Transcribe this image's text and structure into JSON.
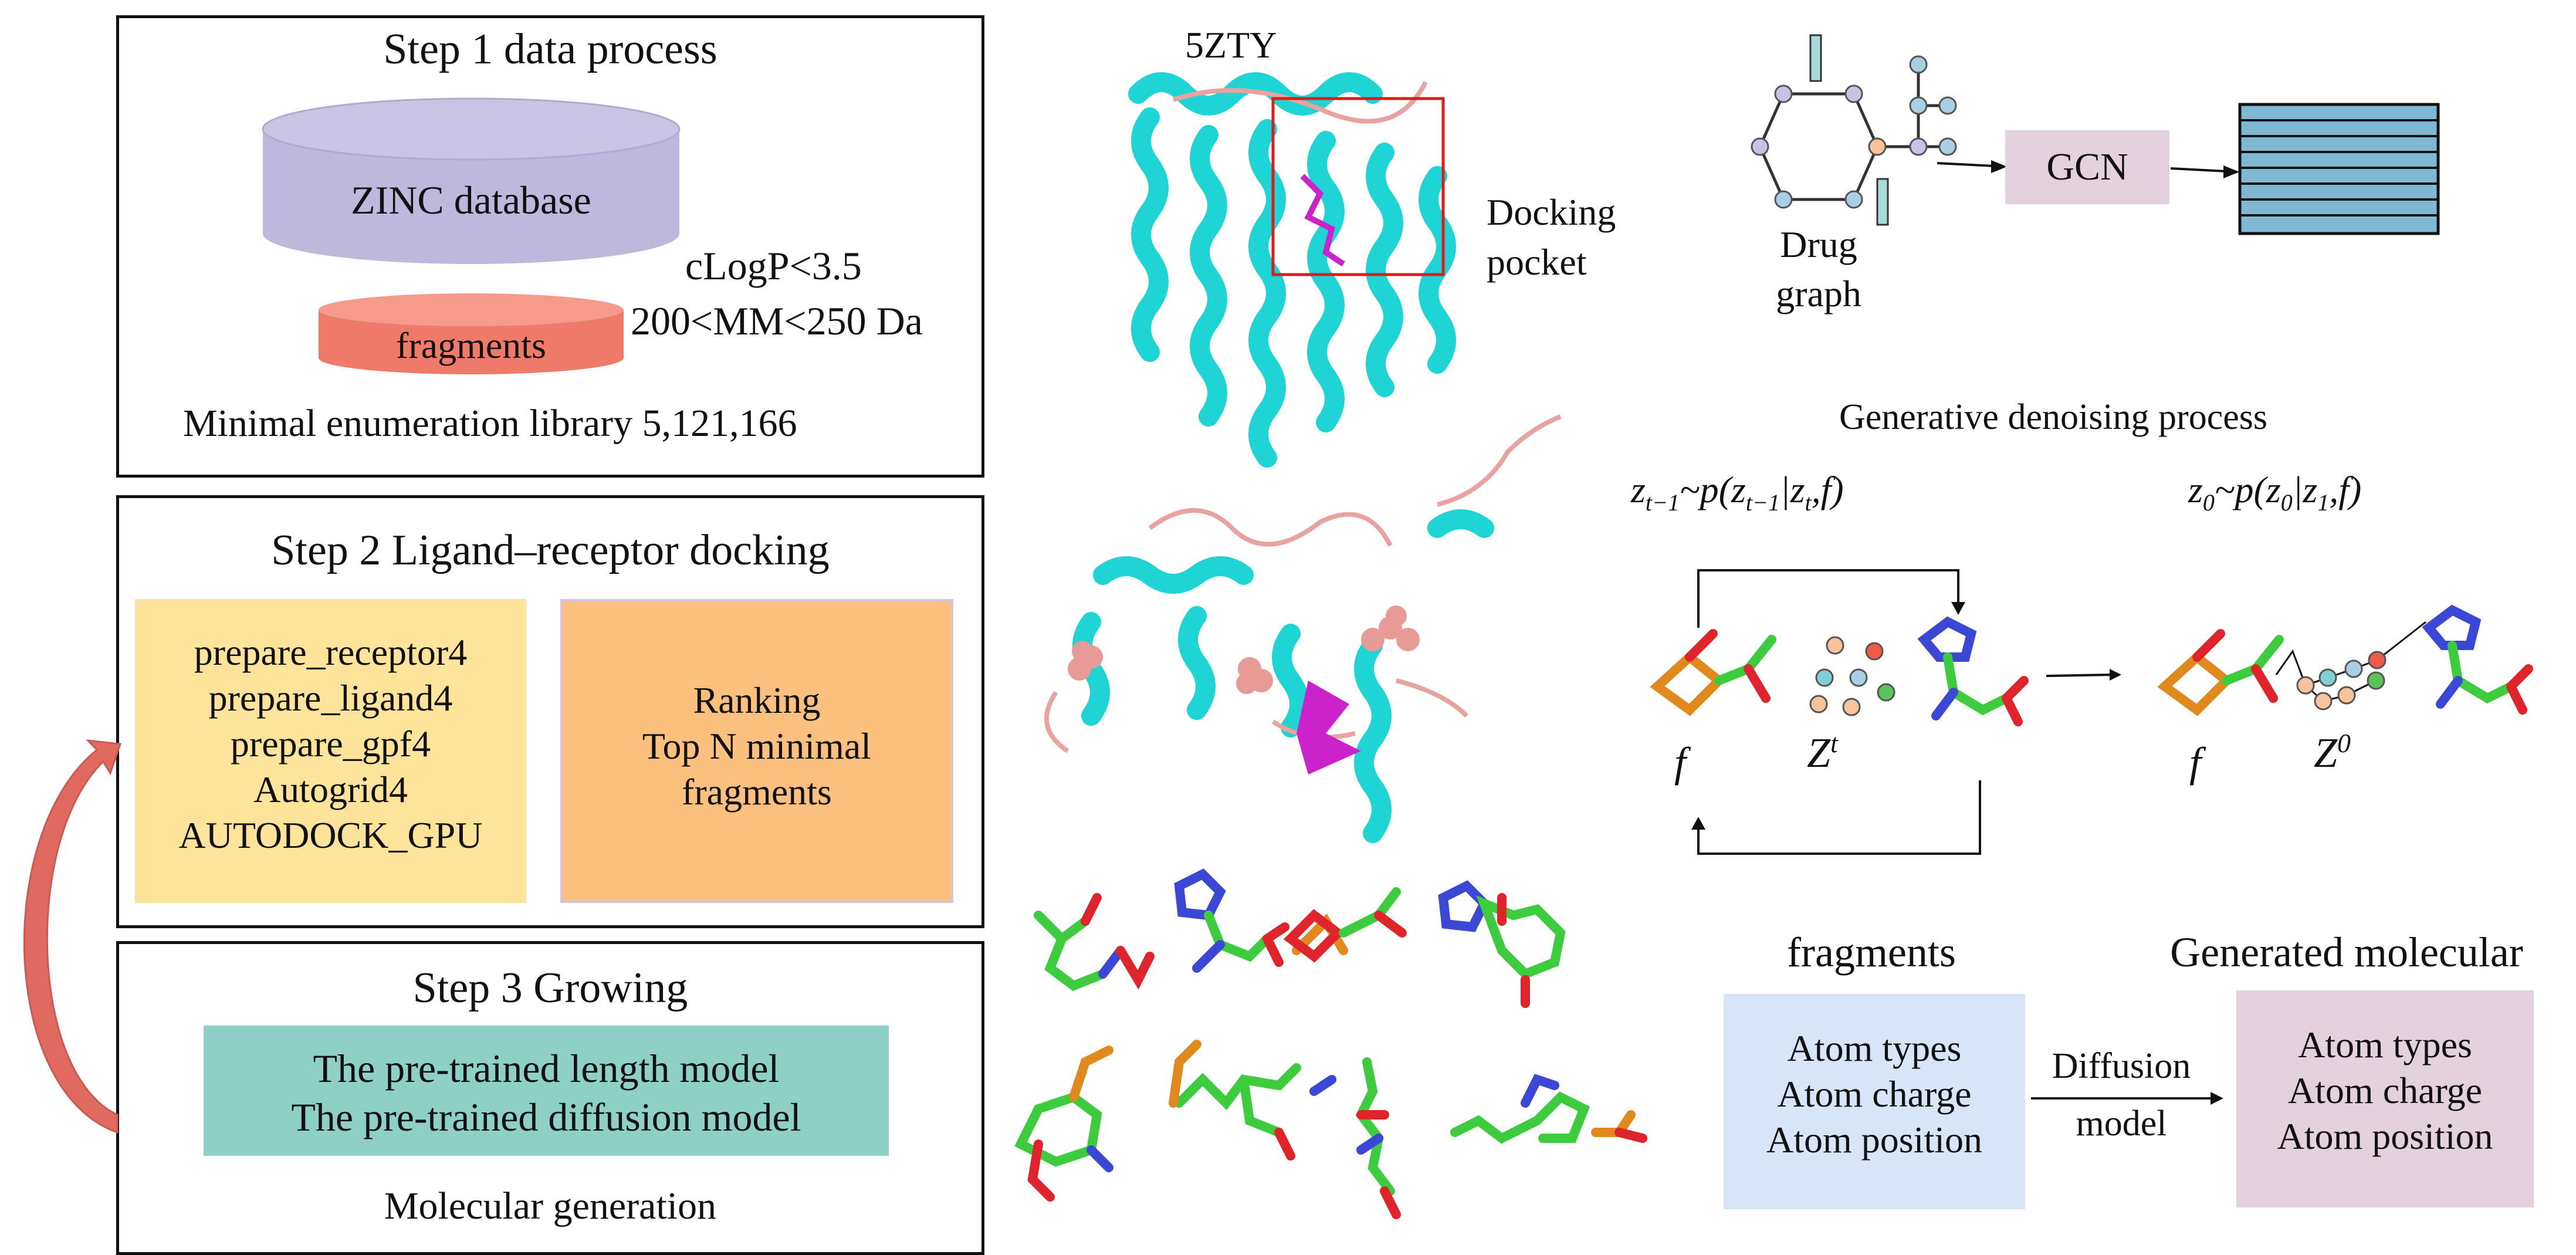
{
  "step1": {
    "title": "Step 1 data process",
    "database_label": "ZINC database",
    "fragments_label": "fragments",
    "filter_logp": "cLogP<3.5",
    "filter_mass": "200<MM<250 Da",
    "library_text": "Minimal enumeration library 5,121,166"
  },
  "step2": {
    "title": "Step 2 Ligand–receptor docking",
    "commands": [
      "prepare_receptor4",
      "prepare_ligand4",
      "prepare_gpf4",
      "Autogrid4",
      "AUTODOCK_GPU"
    ],
    "ranking": [
      "Ranking",
      "Top N minimal",
      "fragments"
    ]
  },
  "step3": {
    "title": "Step 3 Growing",
    "models": [
      "The pre-trained length model",
      "The pre-trained diffusion model"
    ],
    "caption": "Molecular generation"
  },
  "protein": {
    "pdb_id": "5ZTY",
    "pocket_label": [
      "Docking",
      "pocket"
    ]
  },
  "gcn": {
    "graph_label": [
      "Drug",
      "graph"
    ],
    "box_label": "GCN"
  },
  "denoising": {
    "title": "Generative denoising process",
    "eq1": "z_{t-1}~p(z_{t-1}|z_t,f)",
    "eq2": "z_0~p(z_0|z_1,f)",
    "label_f": "f",
    "label_zt": "Z^t",
    "label_z0": "Z^0"
  },
  "bottom": {
    "fragments_title": "fragments",
    "fragments_items": [
      "Atom types",
      "Atom charge",
      "Atom position"
    ],
    "arrow_label": [
      "Diffusion",
      "model"
    ],
    "generated_title": "Generated molecular",
    "generated_items": [
      "Atom types",
      "Atom charge",
      "Atom position"
    ]
  },
  "colors": {
    "database": "#bdb8dc",
    "fragments": "#f07a6a",
    "commands_bg": "#fde49a",
    "ranking_bg": "#fcc07e",
    "models_bg": "#8fd0c6",
    "gcn_bg": "#e3d2dd",
    "fragments_box": "#d7e5f7",
    "generated_box": "#e3d2dd",
    "protein": "#1ed4d4",
    "loop": "#e8a2a0",
    "ligand": "#cc22cc",
    "arrow_red": "#e06a60"
  }
}
